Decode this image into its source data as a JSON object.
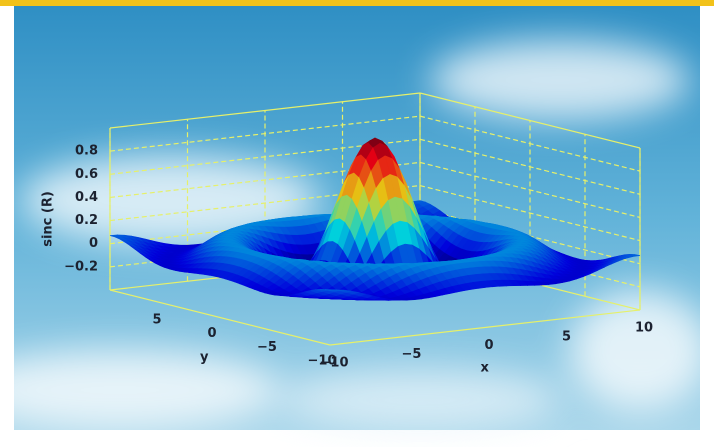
{
  "chart_data": {
    "type": "surface",
    "zlabel": "sinc (R)",
    "xlabel": "x",
    "ylabel": "y",
    "xlim": [
      -10,
      10
    ],
    "ylim": [
      -10,
      10
    ],
    "zlim": [
      -0.4,
      1
    ],
    "xticks": [
      {
        "value": -10,
        "label": "−10"
      },
      {
        "value": -5,
        "label": "−5"
      },
      0,
      5,
      10
    ],
    "yticks": [
      5,
      0,
      {
        "value": -5,
        "label": "−5"
      },
      {
        "value": -10,
        "label": "−10"
      }
    ],
    "zticks": [
      0.8,
      0.6,
      0.4,
      0.2,
      0,
      {
        "value": -0.2,
        "label": "−0.2"
      }
    ],
    "grid": true,
    "box_color": "#e6f06a"
  }
}
